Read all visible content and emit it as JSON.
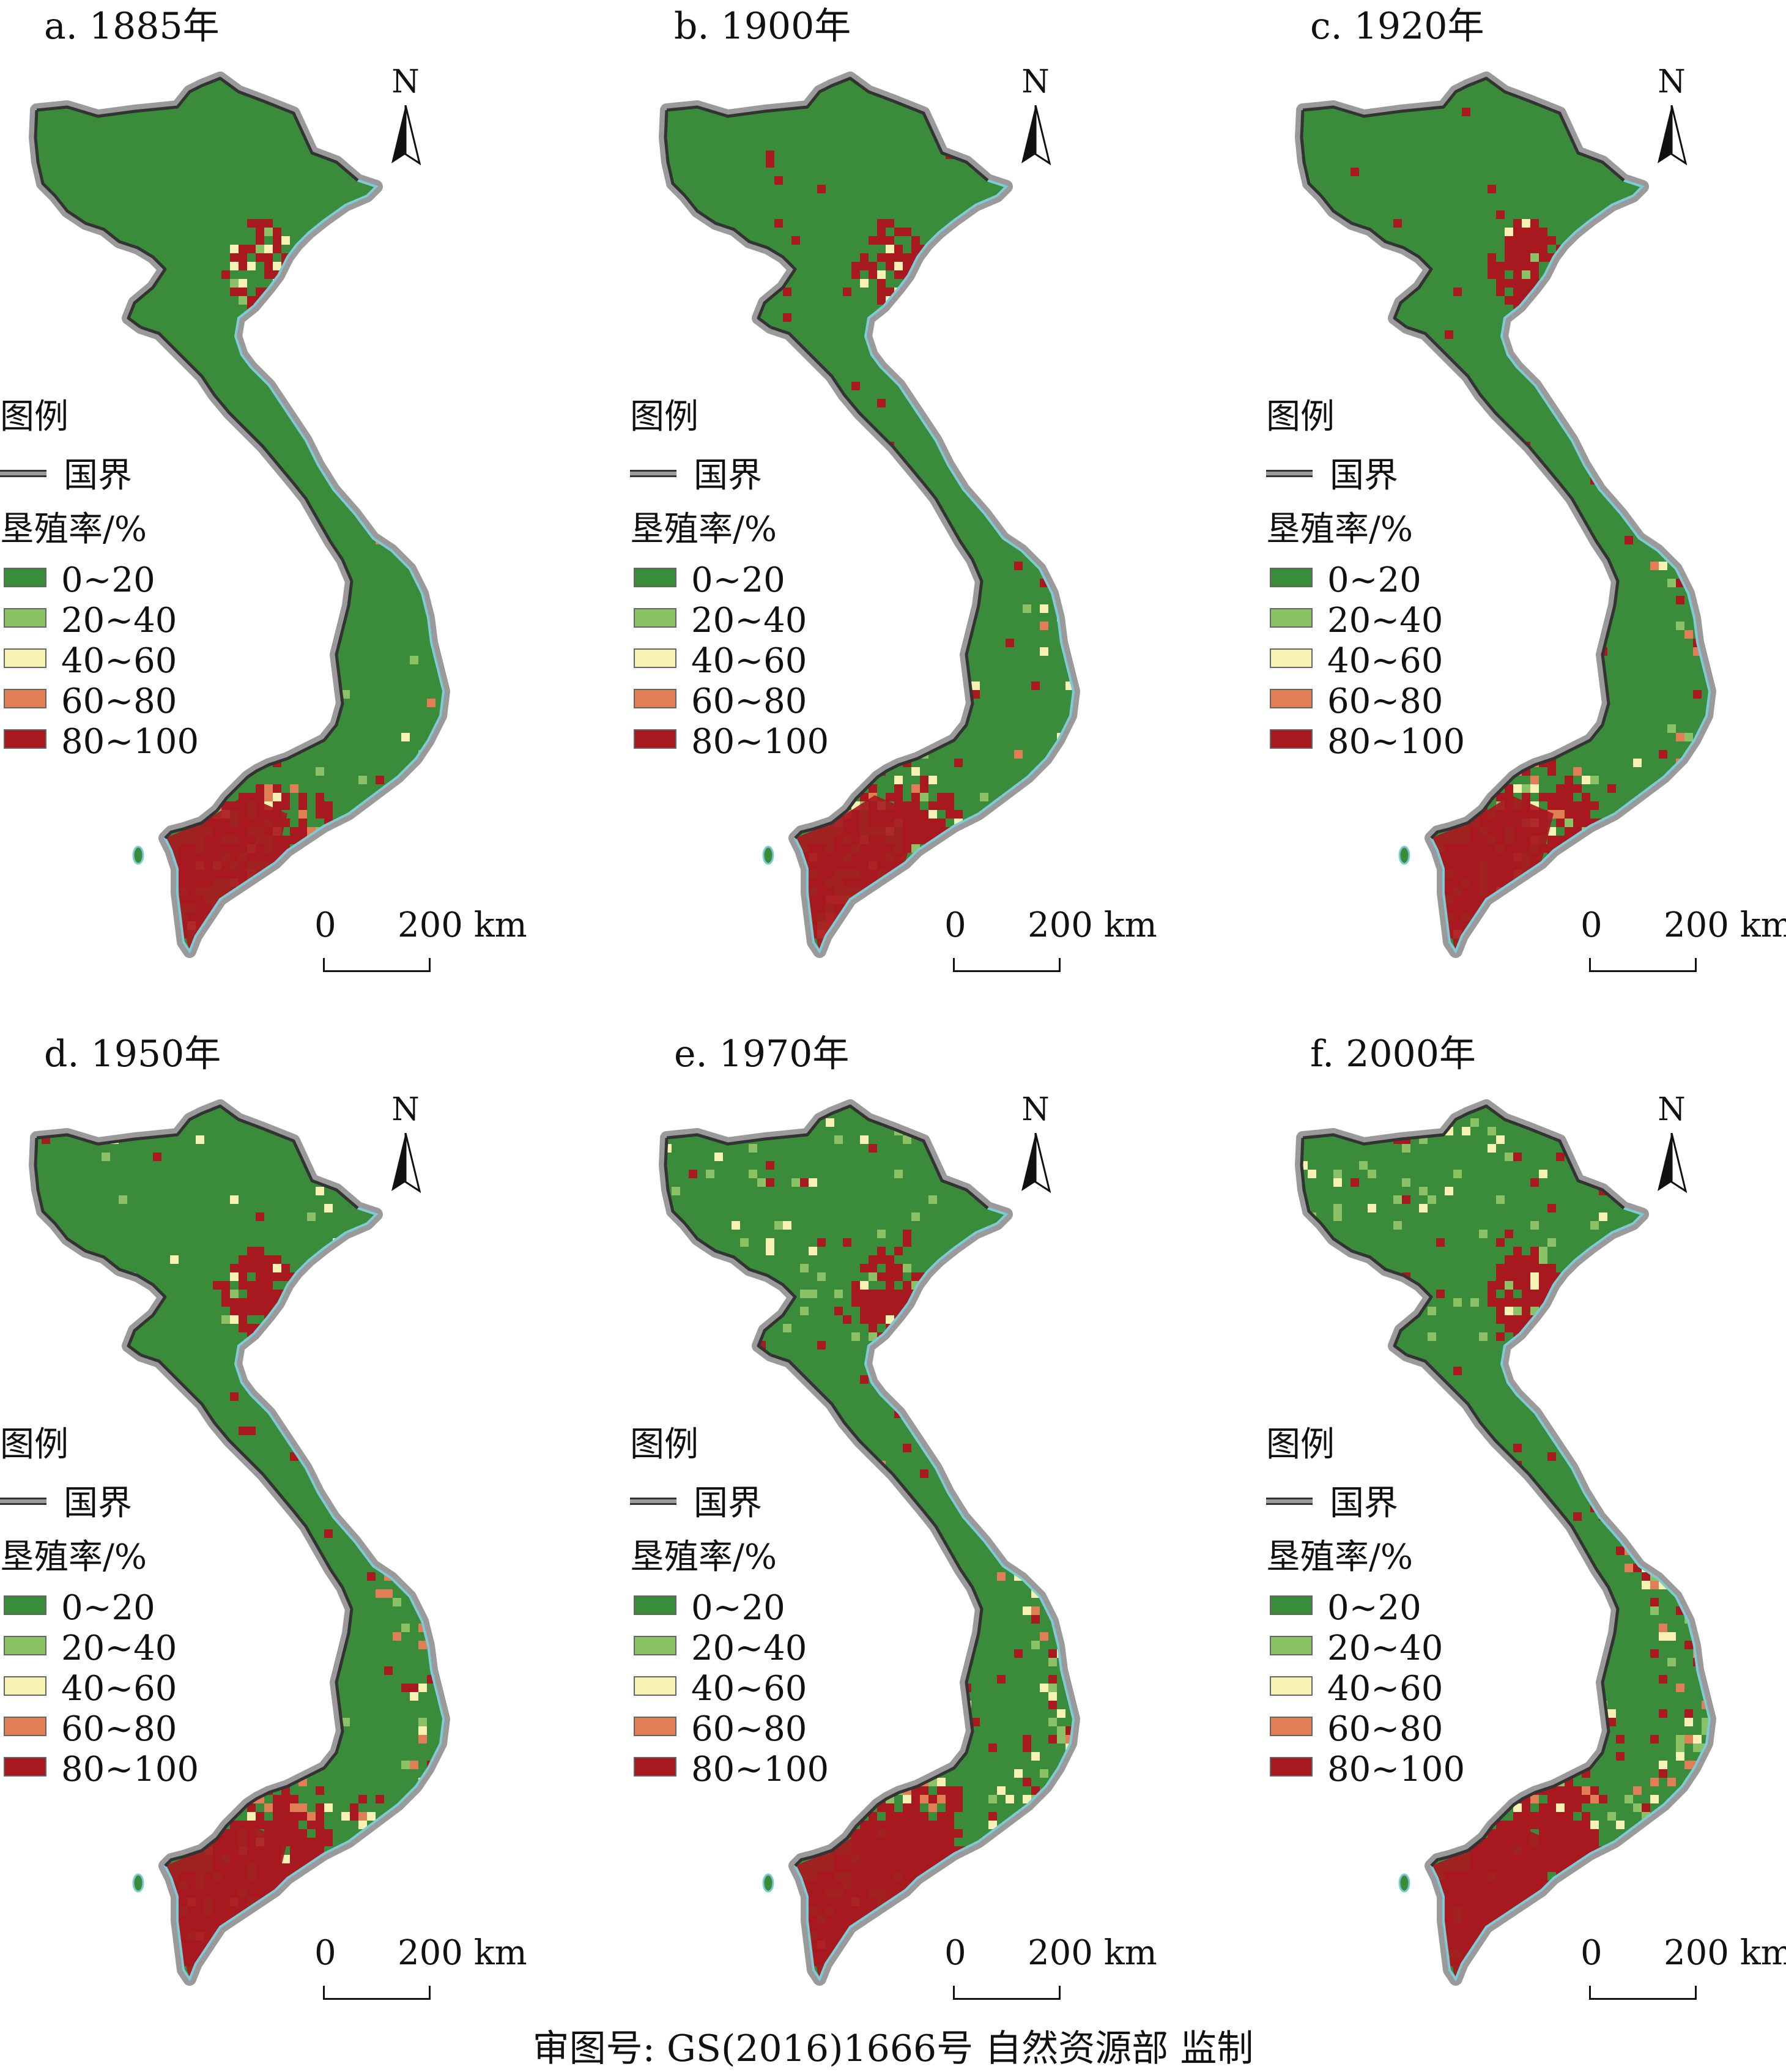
{
  "figure": {
    "footer": "审图号: GS(2016)1666号 自然资源部 监制"
  },
  "legend": {
    "title": "图例",
    "border_label": "国界",
    "subtitle": "垦殖率/%",
    "items": [
      {
        "label": "0~20",
        "color": "#3a8c3a"
      },
      {
        "label": "20~40",
        "color": "#8cc266"
      },
      {
        "label": "40~60",
        "color": "#f7f2b4"
      },
      {
        "label": "60~80",
        "color": "#e07f56"
      },
      {
        "label": "80~100",
        "color": "#a8191f"
      }
    ]
  },
  "colors": {
    "border_line": "#333333",
    "border_halo": "#9a9a9a",
    "coast": "#7ecad6"
  },
  "north_arrow": {
    "label": "N",
    "icon": "north-arrow-icon"
  },
  "scale_bar": {
    "zero": "0",
    "distance": "200 km"
  },
  "panels": [
    {
      "title": "a.  1885年",
      "year": 1885,
      "cultivation_level": 0
    },
    {
      "title": "b. 1900年",
      "year": 1900,
      "cultivation_level": 1
    },
    {
      "title": "c. 1920年",
      "year": 1920,
      "cultivation_level": 2
    },
    {
      "title": "d. 1950年",
      "year": 1950,
      "cultivation_level": 3
    },
    {
      "title": "e. 1970年",
      "year": 1970,
      "cultivation_level": 4
    },
    {
      "title": "f. 2000年",
      "year": 2000,
      "cultivation_level": 5
    }
  ]
}
